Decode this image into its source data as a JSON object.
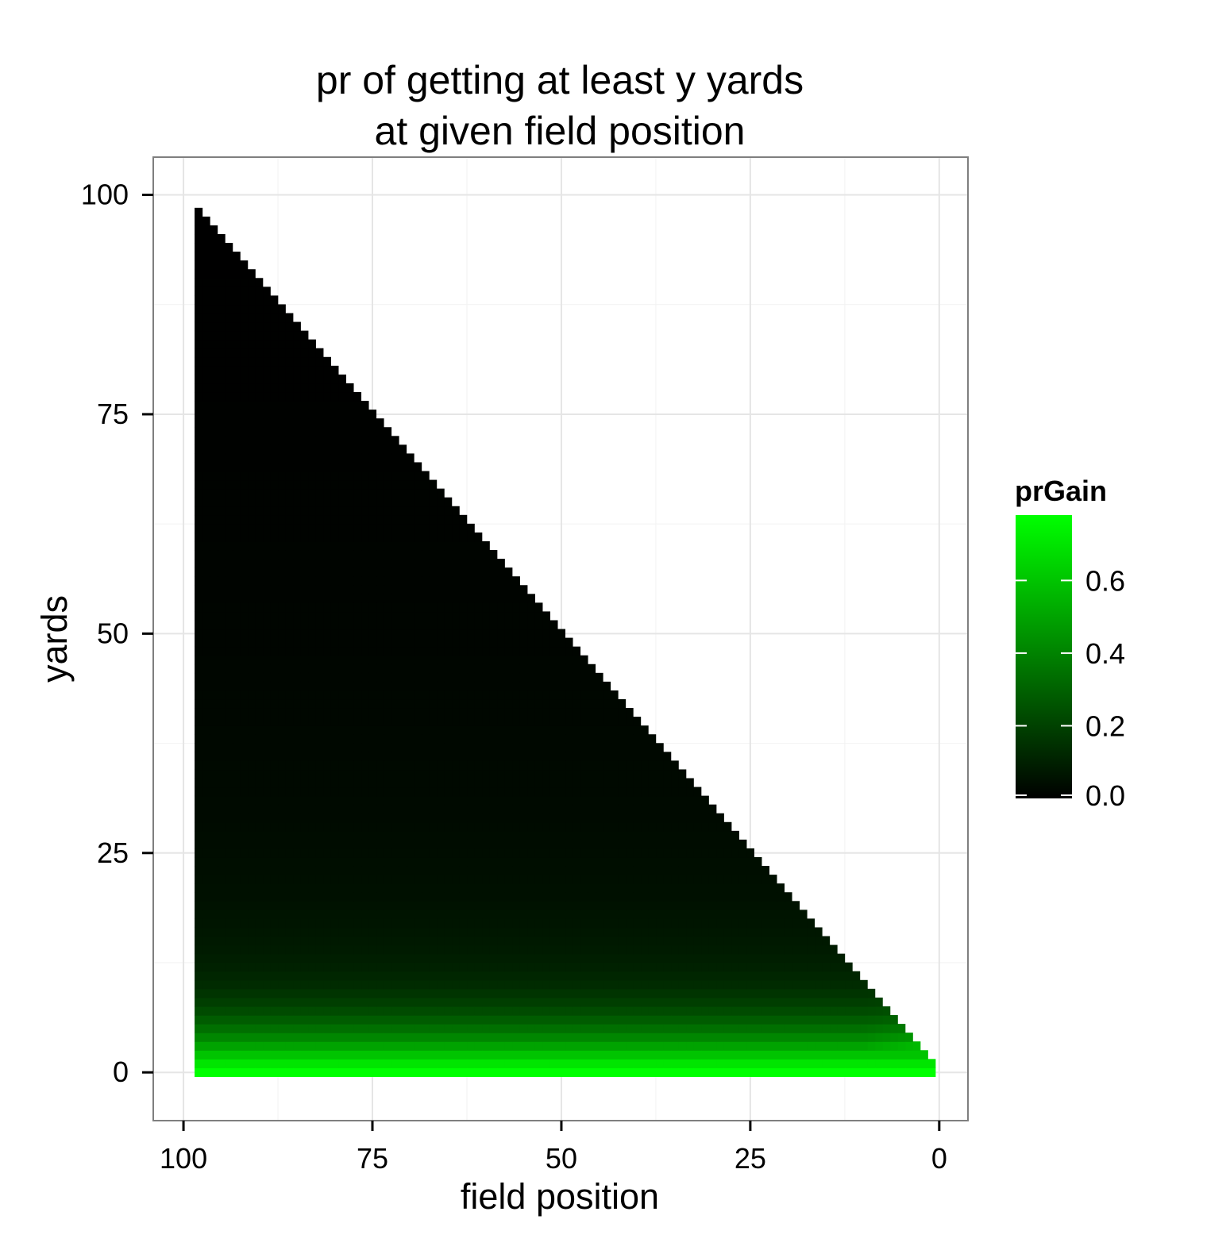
{
  "chart_data": {
    "type": "heatmap",
    "title": [
      "pr of getting at least y yards",
      "at given field position"
    ],
    "xlabel": "field position",
    "ylabel": "yards",
    "xlim": [
      104,
      -3.8
    ],
    "ylim": [
      -5.5,
      104.3
    ],
    "x_reversed": true,
    "x_ticks": [
      100,
      75,
      50,
      25,
      0
    ],
    "y_ticks": [
      0,
      25,
      50,
      75,
      100
    ],
    "x_tick_labels": [
      "100",
      "75",
      "50",
      "25",
      "0"
    ],
    "y_tick_labels": [
      "0",
      "25",
      "50",
      "75",
      "100"
    ],
    "grid": true,
    "legend": {
      "title": "prGain",
      "position": "right",
      "range": [
        0,
        0.78
      ],
      "ticks": [
        0.0,
        0.2,
        0.4,
        0.6
      ],
      "tick_labels": [
        "0.0",
        "0.2",
        "0.4",
        "0.6"
      ],
      "color_low": "#000000",
      "color_high": "#00ff00"
    },
    "grid_spec": {
      "field_position_range": [
        1,
        98
      ],
      "yards_range": [
        0,
        98
      ],
      "cell_rule": "yards <= field_position"
    },
    "yards_profile": [
      {
        "yards": 0,
        "prGain": 0.78
      },
      {
        "yards": 1,
        "prGain": 0.7
      },
      {
        "yards": 2,
        "prGain": 0.6
      },
      {
        "yards": 3,
        "prGain": 0.5
      },
      {
        "yards": 4,
        "prGain": 0.41
      },
      {
        "yards": 5,
        "prGain": 0.34
      },
      {
        "yards": 6,
        "prGain": 0.28
      },
      {
        "yards": 7,
        "prGain": 0.23
      },
      {
        "yards": 8,
        "prGain": 0.19
      },
      {
        "yards": 9,
        "prGain": 0.16
      },
      {
        "yards": 10,
        "prGain": 0.13
      },
      {
        "yards": 12,
        "prGain": 0.1
      },
      {
        "yards": 15,
        "prGain": 0.075
      },
      {
        "yards": 20,
        "prGain": 0.05
      },
      {
        "yards": 30,
        "prGain": 0.03
      },
      {
        "yards": 50,
        "prGain": 0.015
      },
      {
        "yards": 75,
        "prGain": 0.005
      },
      {
        "yards": 98,
        "prGain": 0.0
      }
    ]
  }
}
